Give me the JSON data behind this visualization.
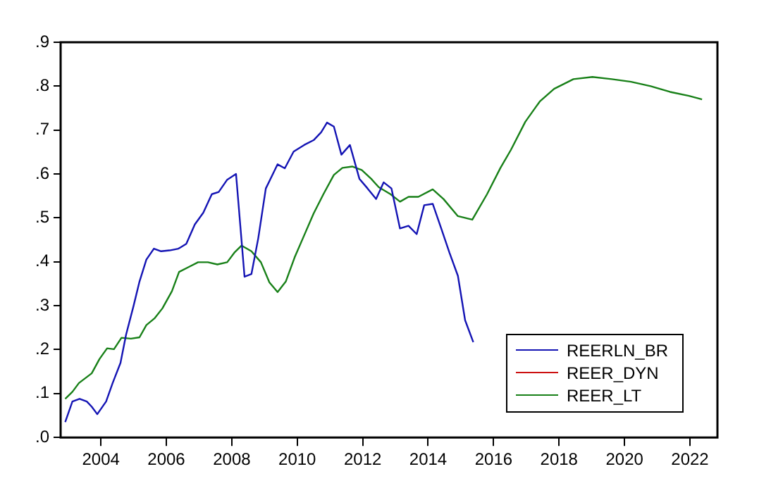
{
  "chart_data": {
    "type": "line",
    "xlim": [
      2002.77,
      2022.84
    ],
    "xticks": [
      2004,
      2006,
      2008,
      2010,
      2012,
      2014,
      2016,
      2018,
      2020,
      2022
    ],
    "ylim": [
      0,
      0.9
    ],
    "yticks": [
      {
        "value": 0,
        "label": ".0"
      },
      {
        "value": 0.1,
        "label": ".1"
      },
      {
        "value": 0.2,
        "label": ".2"
      },
      {
        "value": 0.3,
        "label": ".3"
      },
      {
        "value": 0.4,
        "label": ".4"
      },
      {
        "value": 0.5,
        "label": ".5"
      },
      {
        "value": 0.6,
        "label": ".6"
      },
      {
        "value": 0.7,
        "label": ".7"
      },
      {
        "value": 0.8,
        "label": ".8"
      },
      {
        "value": 0.9,
        "label": ".9"
      }
    ],
    "grid": false,
    "legend": "bottom right",
    "marker": "none",
    "line_style": "solid",
    "series": [
      {
        "name": "REERLN_BR",
        "color": "#1414b4",
        "x": [
          2002.91,
          2003.13,
          2003.35,
          2003.57,
          2003.72,
          2003.89,
          2004.16,
          2004.36,
          2004.6,
          2004.77,
          2005.0,
          2005.18,
          2005.39,
          2005.62,
          2005.84,
          2006.1,
          2006.37,
          2006.61,
          2006.87,
          2007.13,
          2007.39,
          2007.6,
          2007.86,
          2008.13,
          2008.39,
          2008.6,
          2008.81,
          2009.04,
          2009.4,
          2009.62,
          2009.89,
          2010.21,
          2010.5,
          2010.73,
          2010.91,
          2011.12,
          2011.35,
          2011.61,
          2011.9,
          2012.15,
          2012.41,
          2012.64,
          2012.88,
          2013.14,
          2013.4,
          2013.65,
          2013.88,
          2014.14,
          2014.4,
          2014.65,
          2014.91,
          2015.13,
          2015.38
        ],
        "values": [
          0.035,
          0.082,
          0.088,
          0.082,
          0.07,
          0.053,
          0.082,
          0.124,
          0.17,
          0.234,
          0.3,
          0.355,
          0.405,
          0.43,
          0.424,
          0.426,
          0.43,
          0.441,
          0.485,
          0.512,
          0.554,
          0.559,
          0.587,
          0.6,
          0.366,
          0.372,
          0.454,
          0.567,
          0.622,
          0.613,
          0.651,
          0.666,
          0.677,
          0.695,
          0.717,
          0.708,
          0.644,
          0.666,
          0.589,
          0.567,
          0.543,
          0.581,
          0.567,
          0.476,
          0.482,
          0.463,
          0.529,
          0.532,
          0.476,
          0.421,
          0.368,
          0.267,
          0.217
        ]
      },
      {
        "name": "REER_DYN",
        "color": "#cc1010"
      },
      {
        "name": "REER_LT",
        "color": "#188018",
        "x": [
          2002.91,
          2003.13,
          2003.33,
          2003.72,
          2003.96,
          2004.19,
          2004.4,
          2004.63,
          2004.92,
          2005.18,
          2005.39,
          2005.65,
          2005.88,
          2006.17,
          2006.39,
          2006.68,
          2006.97,
          2007.27,
          2007.56,
          2007.86,
          2008.08,
          2008.3,
          2008.6,
          2008.89,
          2009.15,
          2009.4,
          2009.65,
          2009.92,
          2010.21,
          2010.5,
          2010.8,
          2011.12,
          2011.38,
          2011.68,
          2011.97,
          2012.26,
          2012.49,
          2012.85,
          2013.14,
          2013.4,
          2013.7,
          2014.14,
          2014.47,
          2014.91,
          2015.35,
          2015.8,
          2016.21,
          2016.53,
          2016.97,
          2017.41,
          2017.85,
          2018.44,
          2019.02,
          2019.61,
          2020.2,
          2020.8,
          2021.39,
          2021.97,
          2022.37
        ],
        "values": [
          0.088,
          0.104,
          0.124,
          0.146,
          0.179,
          0.203,
          0.201,
          0.227,
          0.225,
          0.228,
          0.256,
          0.272,
          0.294,
          0.333,
          0.377,
          0.388,
          0.399,
          0.399,
          0.394,
          0.399,
          0.421,
          0.437,
          0.424,
          0.399,
          0.353,
          0.331,
          0.355,
          0.41,
          0.46,
          0.51,
          0.554,
          0.598,
          0.614,
          0.617,
          0.609,
          0.589,
          0.57,
          0.554,
          0.537,
          0.548,
          0.548,
          0.565,
          0.543,
          0.504,
          0.496,
          0.554,
          0.614,
          0.655,
          0.719,
          0.765,
          0.794,
          0.816,
          0.821,
          0.816,
          0.81,
          0.8,
          0.787,
          0.778,
          0.77
        ]
      }
    ]
  }
}
